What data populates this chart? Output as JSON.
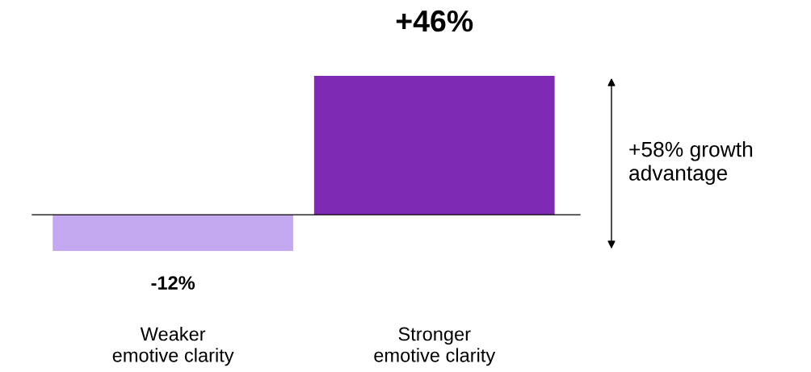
{
  "chart_data": {
    "type": "bar",
    "categories": [
      "Weaker\nemotive clarity",
      "Stronger\nemotive clarity"
    ],
    "values": [
      -12,
      46
    ],
    "colors": [
      "#c5a9f0",
      "#7e2ab5"
    ],
    "value_labels": [
      "-12%",
      "+46%"
    ],
    "annotations": [
      "+58% growth\nadvantage"
    ]
  }
}
